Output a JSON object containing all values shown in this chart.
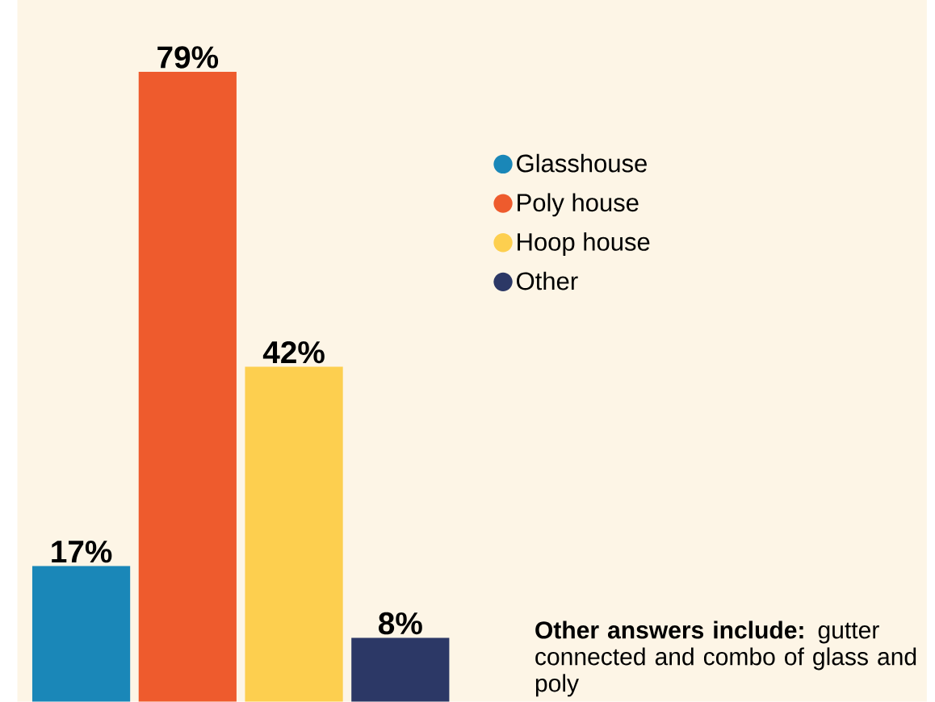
{
  "chart_data": {
    "type": "bar",
    "categories": [
      null
    ],
    "series": [
      {
        "name": "Glasshouse",
        "color": "#1a87b8",
        "values": [
          17
        ],
        "value_labels": [
          "17%"
        ]
      },
      {
        "name": "Poly house",
        "color": "#ee5b2d",
        "values": [
          79
        ],
        "value_labels": [
          "79%"
        ]
      },
      {
        "name": "Hoop house",
        "color": "#fdcf4f",
        "values": [
          42
        ],
        "value_labels": [
          "42%"
        ]
      },
      {
        "name": "Other",
        "color": "#2c3866",
        "values": [
          8
        ],
        "value_labels": [
          "8%"
        ]
      }
    ],
    "ylim": [
      0,
      88
    ],
    "tick_labels": false,
    "legend": "right",
    "marker": "circle",
    "annotations": [
      "**Other answers include:** gutter connected and combo of glass and poly"
    ]
  }
}
